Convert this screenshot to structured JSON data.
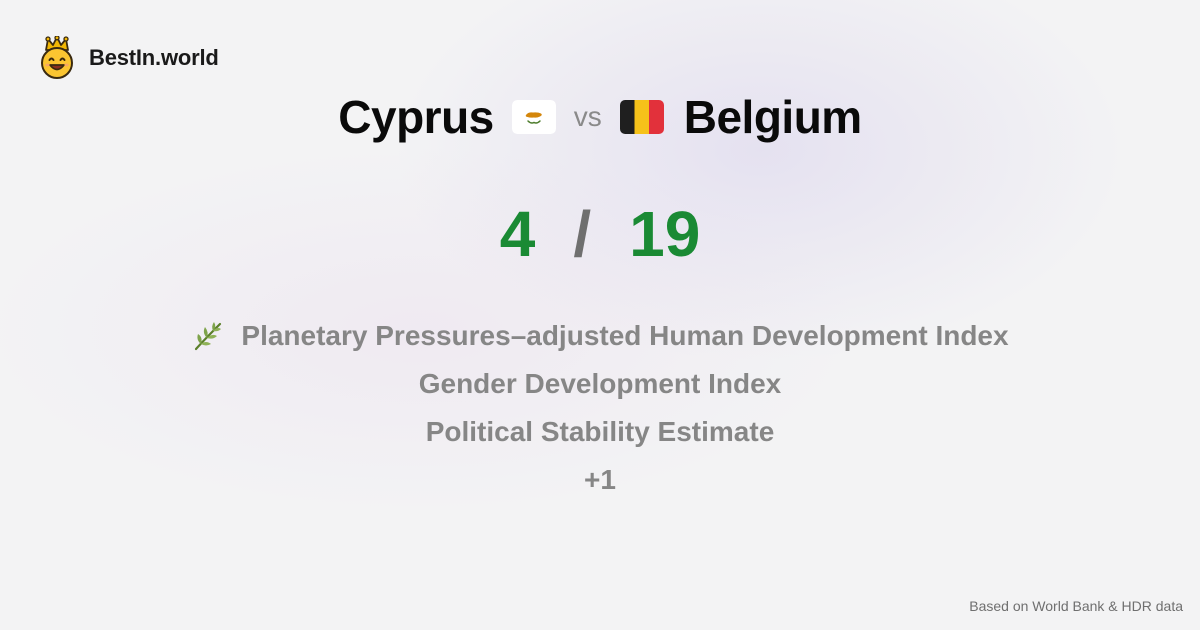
{
  "brand": {
    "name": "BestIn.world",
    "logo_icon": "smiling-face-with-crown-icon"
  },
  "comparison": {
    "left_country": "Cyprus",
    "left_flag_icon": "cyprus-flag-icon",
    "vs_label": "vs",
    "right_country": "Belgium",
    "right_flag_icon": "belgium-flag-icon"
  },
  "score": {
    "left": "4",
    "separator": "/",
    "right": "19",
    "color": "#1a8a34"
  },
  "metrics": [
    {
      "label": "Planetary Pressures–adjusted Human Development Index",
      "icon": "herb-icon"
    },
    {
      "label": "Gender Development Index"
    },
    {
      "label": "Political Stability Estimate"
    },
    {
      "label": "+1"
    }
  ],
  "footer": {
    "source": "Based on World Bank & HDR data"
  }
}
